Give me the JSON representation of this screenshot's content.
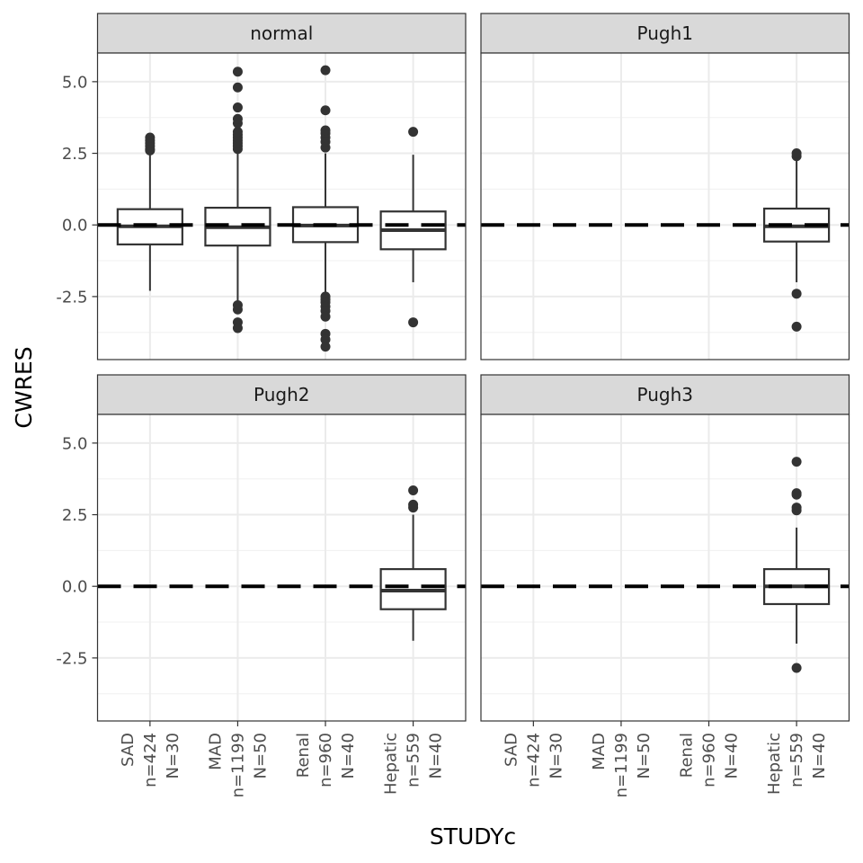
{
  "chart_data": {
    "type": "boxplot",
    "xlabel": "STUDYc",
    "ylabel": "CWRES",
    "ylim": [
      -4.7,
      6.0
    ],
    "yticks": [
      -2.5,
      0.0,
      2.5,
      5.0
    ],
    "ytick_labels": [
      "-2.5",
      "0.0",
      "2.5",
      "5.0"
    ],
    "reference_line": 0,
    "categories": [
      {
        "line1": "SAD",
        "line2": "n=424",
        "line3": "N=30"
      },
      {
        "line1": "MAD",
        "line2": "n=1199",
        "line3": "N=50"
      },
      {
        "line1": "Renal",
        "line2": "n=960",
        "line3": "N=40"
      },
      {
        "line1": "Hepatic",
        "line2": "n=559",
        "line3": "N=40"
      }
    ],
    "panels": [
      {
        "name": "normal",
        "boxes": [
          {
            "category": "SAD",
            "q1": -0.68,
            "median": -0.05,
            "q3": 0.55,
            "whisker_low": -2.3,
            "whisker_high": 2.5,
            "outliers": [
              2.6,
              2.65,
              2.75,
              2.85,
              2.95,
              3.05
            ]
          },
          {
            "category": "MAD",
            "q1": -0.72,
            "median": -0.08,
            "q3": 0.6,
            "whisker_low": -2.7,
            "whisker_high": 2.55,
            "outliers": [
              2.65,
              2.75,
              2.85,
              2.95,
              3.05,
              3.15,
              3.25,
              3.55,
              3.7,
              4.1,
              4.8,
              5.35,
              -2.8,
              -2.95,
              -3.4,
              -3.6
            ]
          },
          {
            "category": "Renal",
            "q1": -0.6,
            "median": -0.02,
            "q3": 0.62,
            "whisker_low": -2.4,
            "whisker_high": 2.5,
            "outliers": [
              2.7,
              2.9,
              3.05,
              3.2,
              3.3,
              4.0,
              5.4,
              -2.5,
              -2.6,
              -2.7,
              -2.85,
              -3.0,
              -3.2,
              -3.8,
              -4.0,
              -4.25
            ]
          },
          {
            "category": "Hepatic",
            "q1": -0.85,
            "median": -0.18,
            "q3": 0.47,
            "whisker_low": -2.0,
            "whisker_high": 2.45,
            "outliers": [
              3.25,
              -3.4
            ]
          }
        ]
      },
      {
        "name": "Pugh1",
        "boxes": [
          {
            "category": "Hepatic",
            "q1": -0.58,
            "median": -0.05,
            "q3": 0.57,
            "whisker_low": -2.0,
            "whisker_high": 2.3,
            "outliers": [
              2.4,
              2.5,
              -2.4,
              -3.55
            ]
          }
        ]
      },
      {
        "name": "Pugh2",
        "boxes": [
          {
            "category": "Hepatic",
            "q1": -0.8,
            "median": -0.15,
            "q3": 0.6,
            "whisker_low": -1.9,
            "whisker_high": 2.5,
            "outliers": [
              2.75,
              2.85,
              3.35
            ]
          }
        ]
      },
      {
        "name": "Pugh3",
        "boxes": [
          {
            "category": "Hepatic",
            "q1": -0.62,
            "median": 0.0,
            "q3": 0.6,
            "whisker_low": -2.0,
            "whisker_high": 2.05,
            "outliers": [
              2.65,
              2.75,
              3.2,
              3.25,
              4.35,
              -2.85
            ]
          }
        ]
      }
    ]
  }
}
